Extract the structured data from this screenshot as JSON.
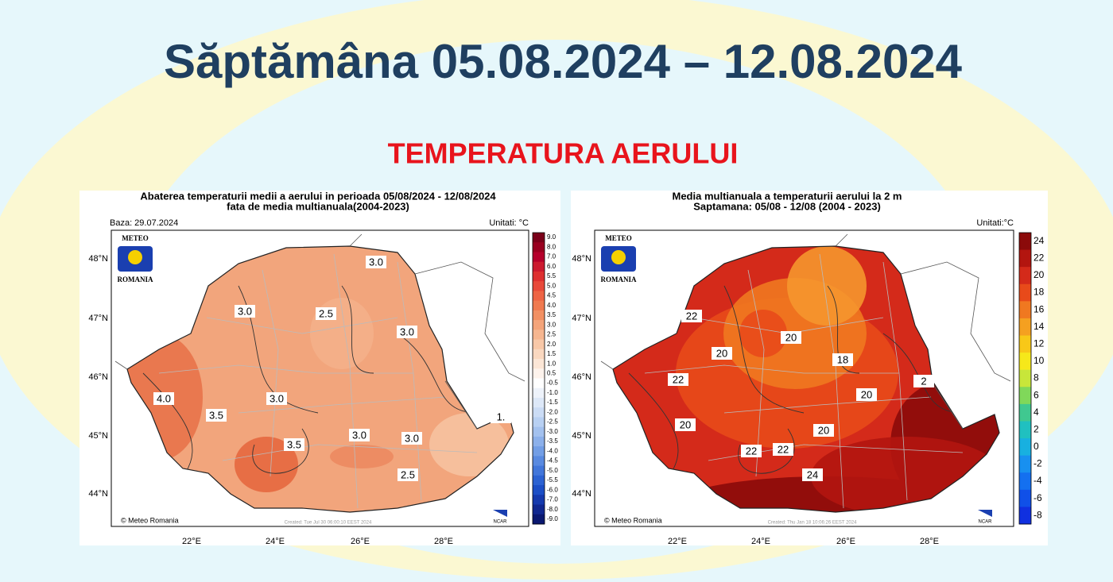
{
  "title": "Săptămâna 05.08.2024 – 12.08.2024",
  "subtitle": "TEMPERATURA AERULUI",
  "maps": [
    {
      "title_lines": [
        "Abaterea temperaturii medii a aerului in perioada 05/08/2024 - 12/08/2024",
        "fata de media multianuala(2004-2023)"
      ],
      "base_date": "Baza: 29.07.2024",
      "units": "Unitati: °C",
      "logo": [
        "METEO",
        "ROMANIA"
      ],
      "copyright": "© Meteo Romania",
      "created": "Created: Tue Jul 30 06:00:10 EEST 2024",
      "ncar": "NCAR",
      "lat_labels": [
        "48°N",
        "47°N",
        "46°N",
        "45°N",
        "44°N"
      ],
      "lon_labels": [
        "22°E",
        "24°E",
        "26°E",
        "28°E"
      ],
      "colorbar": {
        "labels": [
          "9.0",
          "8.0",
          "7.0",
          "6.0",
          "5.5",
          "5.0",
          "4.5",
          "4.0",
          "3.5",
          "3.0",
          "2.5",
          "2.0",
          "1.5",
          "1.0",
          "0.5",
          "-0.5",
          "-1.0",
          "-1.5",
          "-2.0",
          "-2.5",
          "-3.0",
          "-3.5",
          "-4.0",
          "-4.5",
          "-5.0",
          "-5.5",
          "-6.0",
          "-7.0",
          "-8.0",
          "-9.0"
        ],
        "colors": [
          "#7a0019",
          "#99001f",
          "#b5002b",
          "#cc1a2f",
          "#de3030",
          "#e8493a",
          "#ee6445",
          "#f07a50",
          "#f29063",
          "#f4a47a",
          "#f6b690",
          "#f8c8a8",
          "#fad8c0",
          "#fce6d6",
          "#fef3ec",
          "#ffffff",
          "#eef3fb",
          "#dde8f8",
          "#cbdcf5",
          "#b8d0f2",
          "#a3c1ee",
          "#8cb0ea",
          "#739ee5",
          "#5a8ae0",
          "#4276da",
          "#2c62d2",
          "#1c4ec6",
          "#1539ad",
          "#10278f",
          "#0a1870"
        ]
      },
      "contour_labels": [
        "3.0",
        "3.0",
        "2.5",
        "3.0",
        "4.0",
        "3.5",
        "3.0",
        "3.5",
        "3.0",
        "3.0",
        "2.5",
        "1."
      ]
    },
    {
      "title_lines": [
        "Media multianuala a temperaturii aerului la 2 m",
        "Saptamana: 05/08 - 12/08 (2004 - 2023)"
      ],
      "units": "Unitati:°C",
      "logo": [
        "METEO",
        "ROMANIA"
      ],
      "copyright": "© Meteo Romania",
      "created": "Created: Thu Jan 18 10:06:26 EEST 2024",
      "ncar": "NCAR",
      "lat_labels": [
        "48°N",
        "47°N",
        "46°N",
        "45°N",
        "44°N"
      ],
      "lon_labels": [
        "22°E",
        "24°E",
        "26°E",
        "28°E"
      ],
      "colorbar": {
        "labels": [
          "24",
          "22",
          "20",
          "18",
          "16",
          "14",
          "12",
          "10",
          "8",
          "6",
          "4",
          "2",
          "0",
          "-2",
          "-4",
          "-6",
          "-8"
        ],
        "colors": [
          "#8b0a0a",
          "#b3150f",
          "#d42a1a",
          "#e84a1a",
          "#f07820",
          "#f5a020",
          "#f8c818",
          "#f6e81a",
          "#c8e63a",
          "#80d85a",
          "#40c890",
          "#20c0c0",
          "#18b0e0",
          "#1890f0",
          "#1470f0",
          "#1050e8",
          "#1030e0"
        ]
      },
      "contour_labels": [
        "22",
        "20",
        "20",
        "18",
        "22",
        "20",
        "20",
        "20",
        "22",
        "22",
        "24",
        "2"
      ]
    }
  ]
}
